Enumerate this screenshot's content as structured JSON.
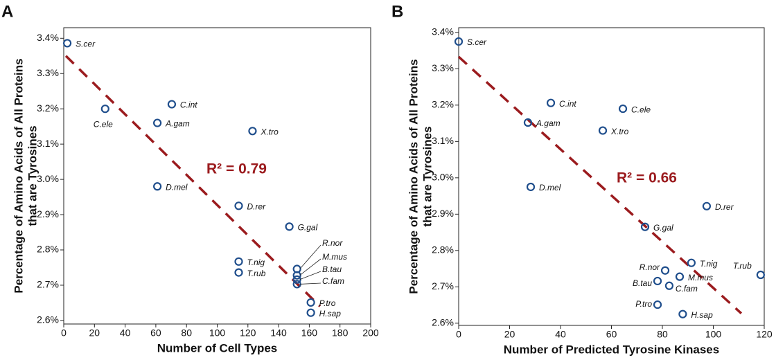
{
  "chart_data": [
    {
      "type": "scatter",
      "panel_label": "A",
      "x_label": "Number of Cell Types",
      "y_label": [
        "Percentage of Amino Acids of All Proteins",
        "that are Tyrosines"
      ],
      "annotation": "R² = 0.79",
      "color": "#1f4e8c",
      "fit_color": "#9b1b1e",
      "xlim": [
        0,
        200
      ],
      "xticks": [
        0,
        20,
        40,
        60,
        80,
        100,
        120,
        140,
        160,
        180,
        200
      ],
      "ylim": [
        2.59,
        3.43
      ],
      "yticks": [
        {
          "value": 2.6,
          "label": "2.6%"
        },
        {
          "value": 2.7,
          "label": "2.7%"
        },
        {
          "value": 2.8,
          "label": "2.8%"
        },
        {
          "value": 2.9,
          "label": "2.9%"
        },
        {
          "value": 3.0,
          "label": "3.0%"
        },
        {
          "value": 3.1,
          "label": "3.1%"
        },
        {
          "value": 3.2,
          "label": "3.2%"
        },
        {
          "value": 3.3,
          "label": "3.3%"
        },
        {
          "value": 3.4,
          "label": "3.4%"
        }
      ],
      "labels": [
        "S.cer",
        "C.ele",
        "C.int",
        "A.gam",
        "X.tro",
        "D.mel",
        "D.rer",
        "G.gal",
        "T.nig",
        "T.rub",
        "R.nor",
        "M.mus",
        "B.tau",
        "C.fam",
        "P.tro",
        "H.sap"
      ],
      "x": [
        2.3,
        27,
        70.4,
        61,
        123,
        61,
        114,
        147,
        114,
        114,
        152,
        152,
        152,
        152,
        161,
        161
      ],
      "values": [
        3.386,
        3.2,
        3.213,
        3.16,
        3.137,
        2.98,
        2.925,
        2.866,
        2.767,
        2.736,
        2.746,
        2.728,
        2.716,
        2.703,
        2.651,
        2.622
      ],
      "fit": {
        "x": [
          1.4,
          167
        ],
        "values": [
          3.35,
          2.64
        ]
      }
    },
    {
      "type": "scatter",
      "panel_label": "B",
      "x_label": "Number of Predicted Tyrosine Kinases",
      "y_label": [
        "Percentage of Amino Acids of All Proteins",
        "that are Tyrosines"
      ],
      "annotation": "R² = 0.66",
      "color": "#1f4e8c",
      "fit_color": "#9b1b1e",
      "xlim": [
        0,
        120
      ],
      "xticks": [
        0,
        20,
        40,
        60,
        80,
        100,
        120
      ],
      "ylim": [
        2.594,
        3.413
      ],
      "yticks": [
        {
          "value": 2.6,
          "label": "2.6%"
        },
        {
          "value": 2.7,
          "label": "2.7%"
        },
        {
          "value": 2.8,
          "label": "2.8%"
        },
        {
          "value": 2.9,
          "label": "2.9%"
        },
        {
          "value": 3.0,
          "label": "3.0%"
        },
        {
          "value": 3.1,
          "label": "3.1%"
        },
        {
          "value": 3.2,
          "label": "3.2%"
        },
        {
          "value": 3.3,
          "label": "3.3%"
        },
        {
          "value": 3.4,
          "label": "3.4%"
        }
      ],
      "labels": [
        "S.cer",
        "C.int",
        "C.ele",
        "A.gam",
        "X.tro",
        "D.mel",
        "D.rer",
        "G.gal",
        "T.nig",
        "T.rub",
        "R.nor",
        "M.mus",
        "B.tau",
        "C.fam",
        "P.tro",
        "H.sap"
      ],
      "x": [
        0,
        36.2,
        64.5,
        27.2,
        56.6,
        28.3,
        97.4,
        73.2,
        91.4,
        118.6,
        81.1,
        86.8,
        78.1,
        82.7,
        78.1,
        88
      ],
      "values": [
        3.375,
        3.206,
        3.19,
        3.152,
        3.13,
        2.975,
        2.922,
        2.865,
        2.766,
        2.733,
        2.745,
        2.728,
        2.716,
        2.703,
        2.651,
        2.625
      ],
      "fit": {
        "x": [
          0,
          111
        ],
        "values": [
          3.333,
          2.627
        ]
      }
    }
  ]
}
